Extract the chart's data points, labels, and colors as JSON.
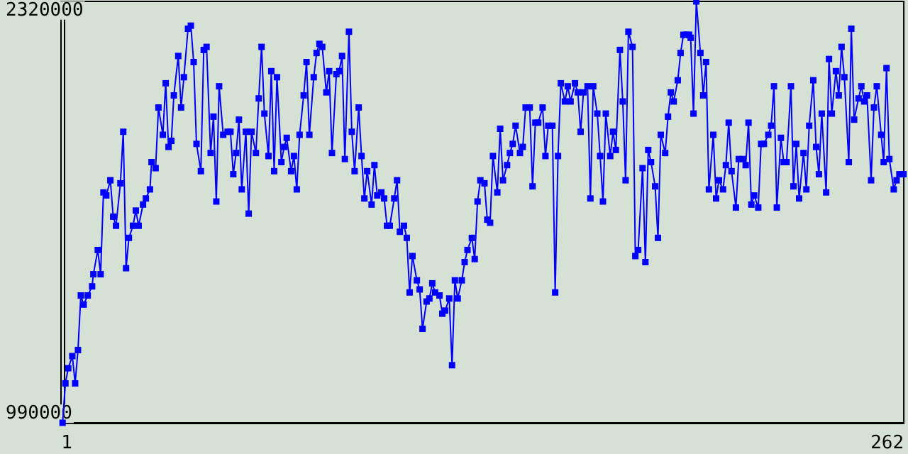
{
  "chart_data": {
    "type": "line",
    "xlim": [
      -0.8,
      267.3
    ],
    "xticks": [
      1,
      262
    ],
    "ylim": [
      960000,
      2350000
    ],
    "yticks": [
      990000,
      2320000
    ],
    "grid": false,
    "marker": "square",
    "line_style": "solid",
    "x": [
      -0.3,
      0.6,
      1.5,
      2.8,
      3.7,
      4.6,
      5.5,
      6.4,
      7.7,
      9.1,
      9.5,
      10.9,
      11.8,
      12.7,
      13.6,
      14.9,
      15.8,
      16.7,
      18.1,
      19.0,
      19.9,
      20.8,
      22.1,
      23.0,
      23.9,
      25.3,
      26.2,
      27.5,
      28.0,
      29.3,
      30.2,
      31.6,
      32.5,
      33.4,
      34.3,
      35.1,
      36.5,
      37.4,
      38.3,
      39.6,
      40.5,
      41.4,
      42.3,
      43.7,
      44.6,
      45.5,
      46.8,
      47.7,
      48.6,
      49.5,
      50.8,
      52.2,
      53.1,
      54.0,
      54.9,
      55.8,
      56.7,
      58.0,
      58.9,
      59.8,
      61.2,
      62.1,
      63.0,
      63.9,
      65.2,
      66.1,
      67.0,
      67.9,
      69.3,
      70.2,
      71.0,
      72.4,
      73.3,
      74.2,
      75.1,
      76.4,
      77.3,
      78.2,
      79.6,
      80.5,
      81.4,
      82.3,
      83.6,
      84.5,
      85.4,
      86.8,
      87.7,
      88.6,
      89.5,
      90.8,
      91.7,
      92.6,
      93.9,
      94.8,
      95.7,
      96.6,
      98.0,
      98.9,
      99.8,
      101.1,
      102.0,
      102.9,
      103.8,
      105.2,
      106.1,
      107.0,
      108.3,
      109.2,
      110.1,
      111.0,
      112.4,
      113.3,
      114.2,
      115.5,
      116.4,
      117.3,
      118.2,
      119.6,
      120.5,
      121.4,
      122.7,
      123.6,
      124.5,
      125.4,
      126.7,
      127.6,
      128.5,
      129.9,
      130.8,
      131.7,
      132.6,
      133.9,
      134.8,
      135.7,
      136.6,
      138.0,
      138.9,
      139.8,
      141.1,
      142.0,
      142.9,
      143.8,
      145.2,
      146.1,
      147.0,
      148.3,
      149.2,
      150.1,
      151.0,
      152.4,
      153.3,
      154.2,
      155.5,
      156.4,
      157.3,
      158.2,
      159.5,
      160.4,
      161.3,
      162.7,
      163.6,
      164.5,
      165.4,
      166.7,
      167.6,
      168.5,
      169.8,
      170.7,
      171.6,
      172.5,
      173.9,
      174.8,
      175.7,
      177.0,
      177.9,
      178.8,
      179.7,
      181.0,
      181.9,
      182.8,
      184.2,
      185.1,
      186.0,
      186.9,
      188.2,
      189.1,
      190.0,
      191.4,
      192.3,
      193.2,
      194.1,
      195.4,
      196.3,
      197.2,
      198.1,
      199.0,
      199.5,
      200.4,
      201.3,
      202.6,
      203.5,
      204.4,
      205.3,
      206.7,
      207.6,
      208.5,
      209.8,
      210.7,
      211.6,
      212.5,
      213.9,
      214.8,
      216.1,
      217.0,
      217.9,
      218.8,
      219.7,
      221.0,
      221.9,
      222.8,
      224.2,
      225.1,
      226.0,
      226.9,
      228.2,
      229.1,
      230.0,
      231.4,
      232.2,
      233.1,
      234.0,
      235.4,
      236.3,
      237.2,
      238.5,
      239.4,
      240.3,
      241.2,
      242.6,
      243.5,
      244.4,
      245.7,
      246.6,
      247.5,
      248.4,
      249.8,
      250.6,
      251.5,
      252.9,
      253.8,
      254.7,
      255.6,
      256.9,
      257.8,
      258.7,
      260.1,
      260.9,
      261.8,
      262.7,
      264.1,
      265.0,
      265.9,
      267.2
    ],
    "series": [
      {
        "color": "#0000ff",
        "values": [
          960000,
          1090000,
          1140000,
          1180000,
          1090000,
          1200000,
          1380000,
          1350000,
          1380000,
          1410000,
          1450000,
          1530000,
          1450000,
          1720000,
          1710000,
          1760000,
          1640000,
          1610000,
          1750000,
          1920000,
          1470000,
          1570000,
          1610000,
          1660000,
          1610000,
          1680000,
          1700000,
          1730000,
          1820000,
          1800000,
          2000000,
          1910000,
          2080000,
          1870000,
          1890000,
          2040000,
          2170000,
          2000000,
          2100000,
          2260000,
          2270000,
          2150000,
          1880000,
          1790000,
          2190000,
          2200000,
          1850000,
          1970000,
          1690000,
          2070000,
          1910000,
          1920000,
          1920000,
          1780000,
          1850000,
          1960000,
          1730000,
          1920000,
          1650000,
          1920000,
          1850000,
          2030000,
          2200000,
          1980000,
          1840000,
          2120000,
          1790000,
          2100000,
          1820000,
          1870000,
          1900000,
          1790000,
          1840000,
          1730000,
          1910000,
          2040000,
          2150000,
          1910000,
          2100000,
          2180000,
          2210000,
          2200000,
          2050000,
          2120000,
          1850000,
          2110000,
          2120000,
          2170000,
          1830000,
          2250000,
          1920000,
          1790000,
          2000000,
          1840000,
          1700000,
          1790000,
          1680000,
          1810000,
          1710000,
          1720000,
          1700000,
          1610000,
          1610000,
          1700000,
          1760000,
          1590000,
          1610000,
          1570000,
          1390000,
          1510000,
          1430000,
          1400000,
          1270000,
          1360000,
          1370000,
          1420000,
          1390000,
          1380000,
          1320000,
          1330000,
          1370000,
          1150000,
          1430000,
          1370000,
          1430000,
          1490000,
          1530000,
          1570000,
          1500000,
          1690000,
          1760000,
          1750000,
          1630000,
          1620000,
          1840000,
          1720000,
          1930000,
          1760000,
          1810000,
          1850000,
          1880000,
          1940000,
          1850000,
          1870000,
          2000000,
          2000000,
          1740000,
          1950000,
          1950000,
          2000000,
          1840000,
          1940000,
          1940000,
          1390000,
          1840000,
          2080000,
          2020000,
          2070000,
          2020000,
          2080000,
          2050000,
          1920000,
          2050000,
          2070000,
          1700000,
          2070000,
          1980000,
          1840000,
          1690000,
          1980000,
          1840000,
          1920000,
          1860000,
          2190000,
          2020000,
          1760000,
          2250000,
          2200000,
          1510000,
          1530000,
          1800000,
          1490000,
          1860000,
          1820000,
          1740000,
          1570000,
          1910000,
          1850000,
          1970000,
          2050000,
          2020000,
          2090000,
          2180000,
          2240000,
          2240000,
          2240000,
          2230000,
          1980000,
          2350000,
          2180000,
          2040000,
          2150000,
          1730000,
          1910000,
          1700000,
          1760000,
          1730000,
          1810000,
          1950000,
          1790000,
          1670000,
          1830000,
          1830000,
          1810000,
          1950000,
          1680000,
          1710000,
          1670000,
          1880000,
          1880000,
          1910000,
          1940000,
          2070000,
          1670000,
          1900000,
          1820000,
          1820000,
          2070000,
          1740000,
          1880000,
          1700000,
          1850000,
          1730000,
          1940000,
          2090000,
          1870000,
          1780000,
          1980000,
          1720000,
          2160000,
          1980000,
          2120000,
          2040000,
          2200000,
          2100000,
          1820000,
          2260000,
          1960000,
          2030000,
          2070000,
          2020000,
          2040000,
          1760000,
          2000000,
          2070000,
          1910000,
          1820000,
          2130000,
          1830000,
          1730000,
          1760000,
          1780000,
          1780000
        ]
      }
    ]
  }
}
